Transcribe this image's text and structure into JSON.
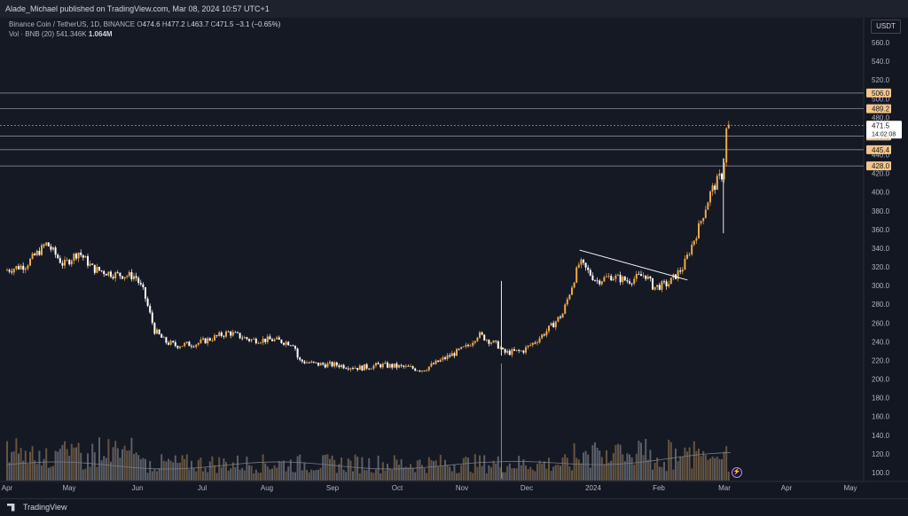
{
  "header": {
    "published_text": "Alade_Michael published on TradingView.com, Mar 08, 2024 10:57 UTC+1"
  },
  "legend": {
    "symbol": "Binance Coin / TetherUS, 1D, BINANCE",
    "open_label": "O",
    "open": "474.6",
    "high_label": "H",
    "high": "477.2",
    "low_label": "L",
    "low": "463.7",
    "close_label": "C",
    "close": "471.5",
    "change": "−3.1 (−0.65%)",
    "vol_label": "Vol · BNB (20)",
    "vol_ma": "541.346K",
    "vol_last": "1.064M"
  },
  "currency_button": "USDT",
  "footer": {
    "brand": "TradingView"
  },
  "colors": {
    "background": "#131722",
    "up": "#f0a94a",
    "down": "#ffffff",
    "level_line": "#868993",
    "level_label_bg": "#f4c68a",
    "price_label_bg": "#ffffff"
  },
  "icons": {
    "lightning": "lightning-icon",
    "logo": "tradingview-logo-icon"
  },
  "chart_data": {
    "type": "candlestick",
    "x_tick_labels": [
      "Apr",
      "May",
      "Jun",
      "Jul",
      "Aug",
      "Sep",
      "Oct",
      "Nov",
      "Dec",
      "2024",
      "Feb",
      "Mar",
      "Apr",
      "May"
    ],
    "y_tick_labels": [
      "560.0",
      "540.0",
      "520.0",
      "500.0",
      "480.0",
      "460.0",
      "440.0",
      "420.0",
      "400.0",
      "380.0",
      "360.0",
      "340.0",
      "320.0",
      "300.0",
      "280.0",
      "260.0",
      "240.0",
      "220.0",
      "200.0",
      "180.0",
      "160.0",
      "140.0",
      "120.0",
      "100.0"
    ],
    "ylim": [
      95,
      572
    ],
    "level_lines": [
      "506.0",
      "489.2",
      "460.0",
      "445.4",
      "428.0"
    ],
    "last_price": "471.5",
    "countdown": "14:02:08",
    "partial_labels": [
      "500.0",
      "480.0"
    ],
    "price_path": [
      [
        "2023-03-31",
        316
      ],
      [
        "2023-04-10",
        322
      ],
      [
        "2023-04-20",
        345
      ],
      [
        "2023-04-28",
        322
      ],
      [
        "2023-05-05",
        336
      ],
      [
        "2023-05-12",
        318
      ],
      [
        "2023-05-22",
        312
      ],
      [
        "2023-06-01",
        310
      ],
      [
        "2023-06-05",
        292
      ],
      [
        "2023-06-10",
        252
      ],
      [
        "2023-06-15",
        240
      ],
      [
        "2023-06-20",
        236
      ],
      [
        "2023-06-30",
        238
      ],
      [
        "2023-07-05",
        242
      ],
      [
        "2023-07-15",
        250
      ],
      [
        "2023-07-25",
        242
      ],
      [
        "2023-08-05",
        242
      ],
      [
        "2023-08-15",
        238
      ],
      [
        "2023-08-17",
        220
      ],
      [
        "2023-08-25",
        216
      ],
      [
        "2023-09-05",
        215
      ],
      [
        "2023-09-15",
        212
      ],
      [
        "2023-09-25",
        215
      ],
      [
        "2023-10-05",
        213
      ],
      [
        "2023-10-15",
        210
      ],
      [
        "2023-10-25",
        222
      ],
      [
        "2023-11-05",
        235
      ],
      [
        "2023-11-10",
        248
      ],
      [
        "2023-11-20",
        235
      ],
      [
        "2023-11-22",
        228
      ],
      [
        "2023-12-01",
        230
      ],
      [
        "2023-12-08",
        242
      ],
      [
        "2023-12-14",
        255
      ],
      [
        "2023-12-20",
        270
      ],
      [
        "2023-12-28",
        325
      ],
      [
        "2024-01-05",
        305
      ],
      [
        "2024-01-12",
        310
      ],
      [
        "2024-01-20",
        305
      ],
      [
        "2024-01-28",
        312
      ],
      [
        "2024-02-01",
        298
      ],
      [
        "2024-02-08",
        302
      ],
      [
        "2024-02-15",
        320
      ],
      [
        "2024-02-22",
        360
      ],
      [
        "2024-02-28",
        400
      ],
      [
        "2024-03-03",
        415
      ],
      [
        "2024-03-05",
        420
      ],
      [
        "2024-03-06",
        465
      ],
      [
        "2024-03-08",
        471.5
      ]
    ],
    "spike_lows": [
      [
        "2024-03-05",
        356
      ],
      [
        "2023-11-21",
        225
      ]
    ],
    "trendline": [
      [
        "2023-12-28",
        338
      ],
      [
        "2024-02-17",
        306
      ]
    ],
    "volume_ma": "541.346K",
    "volume_last": "1.064M"
  }
}
